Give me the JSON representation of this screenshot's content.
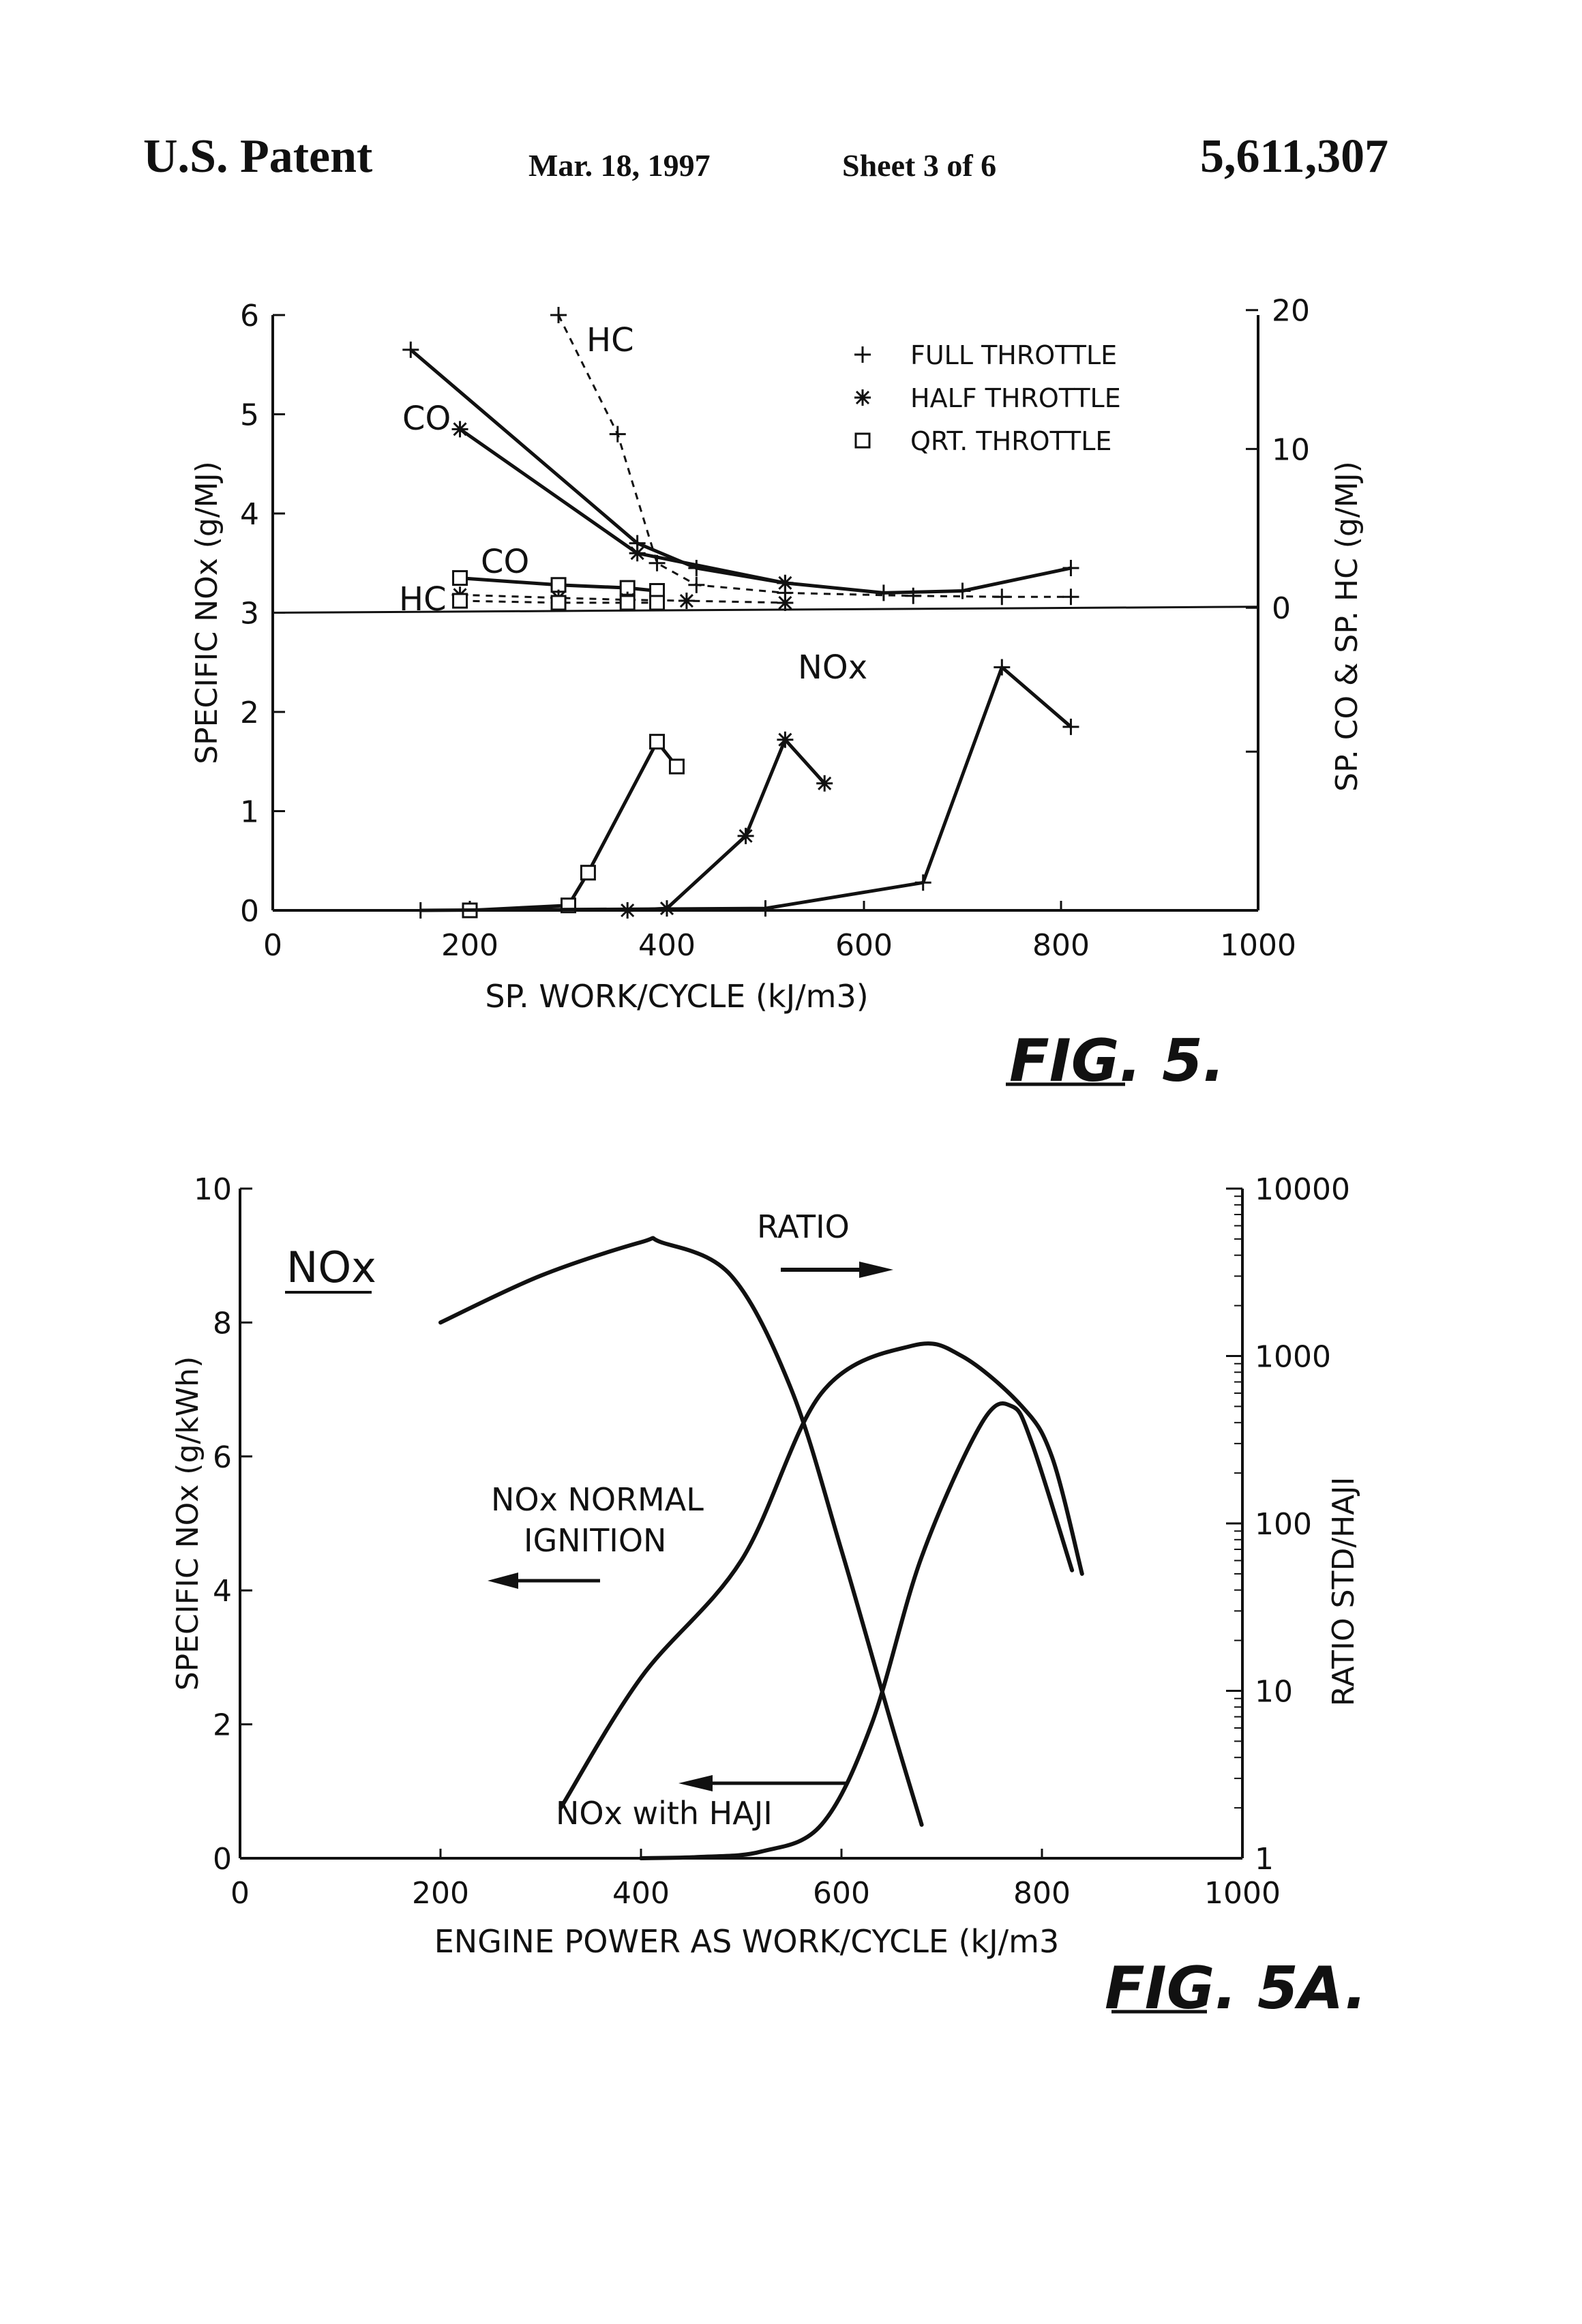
{
  "header": {
    "left": "U.S. Patent",
    "date": "Mar. 18, 1997",
    "sheet": "Sheet 3 of 6",
    "patent_number": "5,611,307"
  },
  "figures": {
    "fig5_label": "FIG. 5.",
    "fig5a_label": "FIG. 5A."
  },
  "chart_data": [
    {
      "type": "line",
      "figure": "FIG. 5",
      "xlabel": "SP. WORK/CYCLE (kJ/m3)",
      "xlim": [
        0,
        1000
      ],
      "x_ticks": [
        "0",
        "200",
        "400",
        "600",
        "800",
        "1000"
      ],
      "ylabel_left": "SPECIFIC NOx (g/MJ)",
      "ylim_left": [
        0,
        6
      ],
      "y_ticks_left": [
        "0",
        "1",
        "2",
        "3",
        "4",
        "5",
        "6"
      ],
      "ylabel_right": "SP. CO & SP. HC (g/MJ)",
      "y_ticks_right": [
        "0",
        "10",
        "20"
      ],
      "legend": [
        {
          "marker": "+",
          "label": "FULL THROTTLE"
        },
        {
          "marker": "*",
          "label": "HALF THROTTLE"
        },
        {
          "marker": "□",
          "label": "QRT. THROTTLE"
        }
      ],
      "annotations": {
        "hc_top": "HC",
        "co_top": "CO",
        "co_low": "CO",
        "hc_low": "HC",
        "nox": "NOx"
      },
      "series": [
        {
          "name": "NOx",
          "marker": "□",
          "x": [
            200,
            300,
            320,
            390,
            410
          ],
          "y": [
            0,
            0.05,
            0.38,
            1.7,
            1.45
          ]
        },
        {
          "name": "NOx",
          "marker": "*",
          "x": [
            360,
            400,
            480,
            520,
            560
          ],
          "y": [
            0,
            0.02,
            0.75,
            1.72,
            1.28
          ]
        },
        {
          "name": "NOx",
          "marker": "+",
          "x": [
            150,
            500,
            660,
            740,
            810
          ],
          "y": [
            0,
            0.02,
            0.28,
            2.45,
            1.85
          ]
        },
        {
          "name": "CO",
          "marker": "+",
          "x": [
            140,
            370,
            430,
            520,
            620,
            700,
            810
          ],
          "y": [
            5.65,
            3.7,
            3.45,
            3.3,
            3.2,
            3.22,
            3.45
          ]
        },
        {
          "name": "CO",
          "marker": "*",
          "x": [
            190,
            370,
            520
          ],
          "y": [
            4.85,
            3.6,
            3.3
          ]
        },
        {
          "name": "CO",
          "marker": "□",
          "x": [
            190,
            290,
            360,
            390
          ],
          "y": [
            3.35,
            3.28,
            3.25,
            3.22
          ]
        },
        {
          "name": "HC",
          "marker": "+",
          "x": [
            290,
            350,
            390,
            430,
            520,
            650,
            740,
            810
          ],
          "y": [
            6.0,
            4.8,
            3.5,
            3.28,
            3.2,
            3.17,
            3.16,
            3.16
          ]
        },
        {
          "name": "HC",
          "marker": "*",
          "x": [
            190,
            290,
            360,
            420,
            520
          ],
          "y": [
            3.18,
            3.15,
            3.13,
            3.12,
            3.1
          ]
        },
        {
          "name": "HC",
          "marker": "□",
          "x": [
            190,
            290,
            360,
            390
          ],
          "y": [
            3.12,
            3.1,
            3.1,
            3.1
          ]
        }
      ]
    },
    {
      "type": "line",
      "figure": "FIG. 5A",
      "xlabel": "ENGINE POWER AS WORK/CYCLE (kJ/m3",
      "xlim": [
        0,
        1000
      ],
      "x_ticks": [
        "0",
        "200",
        "400",
        "600",
        "800",
        "1000"
      ],
      "ylabel_left": "SPECIFIC NOx (g/kWh)",
      "ylim_left": [
        0,
        10
      ],
      "y_ticks_left": [
        "0",
        "2",
        "4",
        "6",
        "8",
        "10"
      ],
      "ylabel_right": "RATIO STD/HAJI",
      "y_scale_right": "log",
      "ylim_right": [
        1,
        10000
      ],
      "y_ticks_right": [
        "1",
        "10",
        "100",
        "1000",
        "10000"
      ],
      "title_label": "NOx",
      "annotations": {
        "ratio": "RATIO",
        "normal_line1": "NOx NORMAL",
        "normal_line2": "IGNITION",
        "haji": "NOx with HAJI"
      },
      "series": [
        {
          "name": "NOx NORMAL IGNITION",
          "axis": "left",
          "x": [
            200,
            300,
            400,
            420,
            490,
            550,
            600,
            650,
            680
          ],
          "y": [
            8.0,
            8.7,
            9.2,
            9.2,
            8.7,
            7.0,
            4.6,
            2.0,
            0.5
          ]
        },
        {
          "name": "NOx with HAJI",
          "axis": "left",
          "x": [
            400,
            460,
            520,
            580,
            630,
            680,
            740,
            770,
            790,
            830
          ],
          "y": [
            0,
            0.02,
            0.1,
            0.5,
            2.0,
            4.5,
            6.5,
            6.75,
            6.2,
            4.3
          ]
        },
        {
          "name": "RATIO",
          "axis": "right",
          "x": [
            320,
            400,
            500,
            580,
            670,
            720,
            780,
            810,
            840
          ],
          "y": [
            2.0,
            12,
            60,
            600,
            1150,
            1000,
            500,
            250,
            50
          ]
        }
      ]
    }
  ]
}
